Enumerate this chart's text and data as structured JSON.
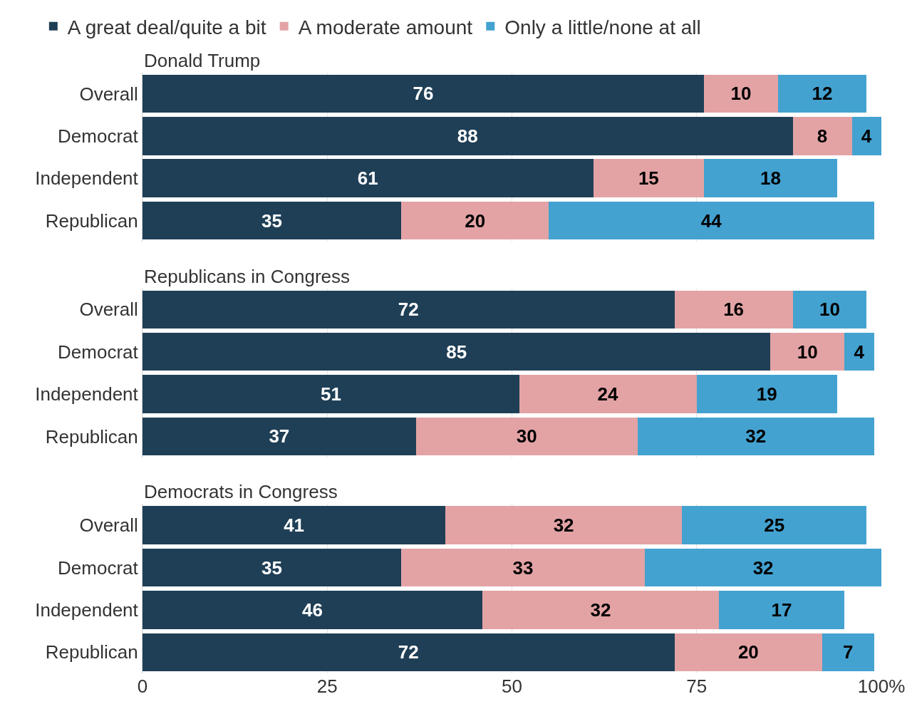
{
  "chart_data": [
    {
      "type": "bar",
      "orientation": "horizontal",
      "stacked": true,
      "title": "Donald Trump",
      "categories": [
        "Overall",
        "Democrat",
        "Independent",
        "Republican"
      ],
      "series": [
        {
          "name": "A great deal/quite a bit",
          "color": "#1f3f56",
          "values": [
            76,
            88,
            61,
            35
          ]
        },
        {
          "name": "A moderate amount",
          "color": "#e3a3a5",
          "values": [
            10,
            8,
            15,
            20
          ]
        },
        {
          "name": "Only a little/none at all",
          "color": "#43a2d0",
          "values": [
            12,
            4,
            18,
            44
          ]
        }
      ],
      "xlim": [
        0,
        100
      ],
      "grid": "x",
      "data_labels": true,
      "legend": "top",
      "tick_labels": "y"
    },
    {
      "type": "bar",
      "orientation": "horizontal",
      "stacked": true,
      "title": "Republicans in Congress",
      "categories": [
        "Overall",
        "Democrat",
        "Independent",
        "Republican"
      ],
      "series": [
        {
          "color": "#1f3f56",
          "values": [
            72,
            85,
            51,
            37
          ]
        },
        {
          "color": "#e3a3a5",
          "values": [
            16,
            10,
            24,
            30
          ]
        },
        {
          "color": "#43a2d0",
          "values": [
            10,
            4,
            19,
            32
          ]
        }
      ],
      "xlim": [
        0,
        100
      ],
      "grid": "x",
      "data_labels": true,
      "tick_labels": "y"
    },
    {
      "type": "bar",
      "orientation": "horizontal",
      "stacked": true,
      "title": "Democrats in Congress",
      "categories": [
        "Overall",
        "Democrat",
        "Independent",
        "Republican"
      ],
      "series": [
        {
          "color": "#1f3f56",
          "values": [
            41,
            35,
            46,
            72
          ]
        },
        {
          "color": "#e3a3a5",
          "values": [
            32,
            33,
            32,
            20
          ]
        },
        {
          "color": "#43a2d0",
          "values": [
            25,
            32,
            17,
            7
          ]
        }
      ],
      "xlim": [
        0,
        100
      ],
      "xticks": [
        0,
        25,
        50,
        75,
        {
          "value": 100,
          "label": "100%"
        }
      ],
      "grid": "x",
      "data_labels": true
    }
  ]
}
